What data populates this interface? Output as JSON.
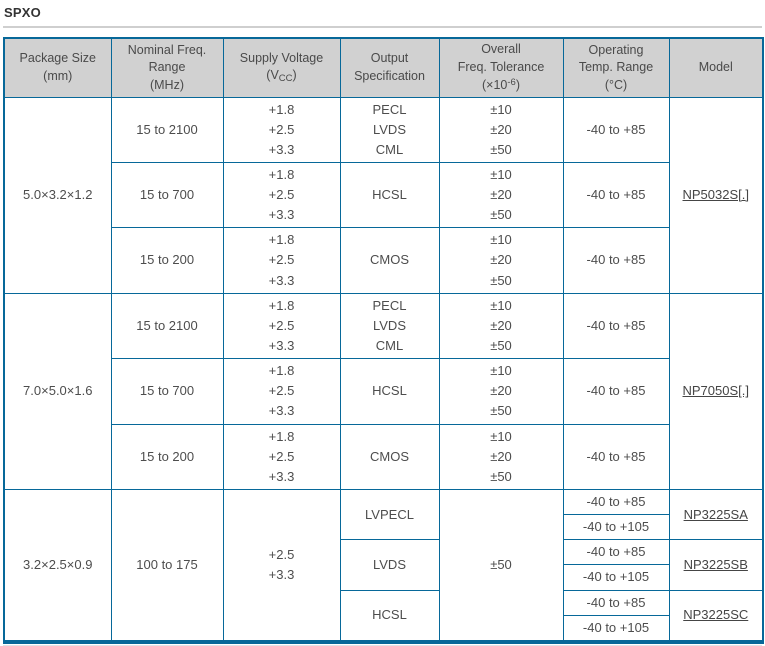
{
  "page": {
    "title": "SPXO"
  },
  "colors": {
    "table_border": "#076899",
    "header_background": "#d1d1d1",
    "body_text": "#4d4d4d",
    "title_text": "#333333"
  },
  "table": {
    "headers": {
      "package": [
        "Package Size",
        "(mm)"
      ],
      "freq": [
        "Nominal Freq.",
        "Range",
        "(MHz)"
      ],
      "supply": {
        "line1": "Supply Voltage",
        "paren_open": "(V",
        "subscript": "CC",
        "paren_close": ")"
      },
      "output": [
        "Output",
        "Specification"
      ],
      "tolerance": {
        "line1": "Overall",
        "line2": "Freq. Tolerance",
        "paren_open": "(×10",
        "superscript": "-6",
        "paren_close": ")"
      },
      "temp": [
        "Operating",
        "Temp. Range",
        "(°C)"
      ],
      "model": "Model"
    },
    "groups": [
      {
        "package": "5.0×3.2×1.2",
        "model": "NP5032S[.]",
        "rows": [
          {
            "freq": "15 to 2100",
            "voltages": [
              "+1.8",
              "+2.5",
              "+3.3"
            ],
            "outputs": [
              "PECL",
              "LVDS",
              "CML"
            ],
            "tolerances": [
              "±10",
              "±20",
              "±50"
            ],
            "temp": "-40 to +85"
          },
          {
            "freq": "15 to 700",
            "voltages": [
              "+1.8",
              "+2.5",
              "+3.3"
            ],
            "outputs": [
              "HCSL"
            ],
            "tolerances": [
              "±10",
              "±20",
              "±50"
            ],
            "temp": "-40 to +85"
          },
          {
            "freq": "15 to 200",
            "voltages": [
              "+1.8",
              "+2.5",
              "+3.3"
            ],
            "outputs": [
              "CMOS"
            ],
            "tolerances": [
              "±10",
              "±20",
              "±50"
            ],
            "temp": "-40 to +85"
          }
        ]
      },
      {
        "package": "7.0×5.0×1.6",
        "model": "NP7050S[.]",
        "rows": [
          {
            "freq": "15 to 2100",
            "voltages": [
              "+1.8",
              "+2.5",
              "+3.3"
            ],
            "outputs": [
              "PECL",
              "LVDS",
              "CML"
            ],
            "tolerances": [
              "±10",
              "±20",
              "±50"
            ],
            "temp": "-40 to +85"
          },
          {
            "freq": "15 to 700",
            "voltages": [
              "+1.8",
              "+2.5",
              "+3.3"
            ],
            "outputs": [
              "HCSL"
            ],
            "tolerances": [
              "±10",
              "±20",
              "±50"
            ],
            "temp": "-40 to +85"
          },
          {
            "freq": "15 to 200",
            "voltages": [
              "+1.8",
              "+2.5",
              "+3.3"
            ],
            "outputs": [
              "CMOS"
            ],
            "tolerances": [
              "±10",
              "±20",
              "±50"
            ],
            "temp": "-40 to +85"
          }
        ]
      },
      {
        "package": "3.2×2.5×0.9",
        "freq": "100 to 175",
        "voltages": [
          "+2.5",
          "+3.3"
        ],
        "tolerance": "±50",
        "outputs": [
          {
            "name": "LVPECL",
            "temps": [
              "-40 to +85",
              "-40 to +105"
            ],
            "model": "NP3225SA"
          },
          {
            "name": "LVDS",
            "temps": [
              "-40 to +85",
              "-40 to +105"
            ],
            "model": "NP3225SB"
          },
          {
            "name": "HCSL",
            "temps": [
              "-40 to +85",
              "-40 to +105"
            ],
            "model": "NP3225SC"
          }
        ]
      }
    ]
  }
}
